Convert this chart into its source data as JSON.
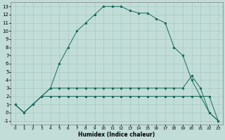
{
  "xlabel": "Humidex (Indice chaleur)",
  "bg_color": "#c2ddd8",
  "grid_color": "#9fc4be",
  "line_color": "#1a6b5a",
  "xlim": [
    -0.5,
    23.5
  ],
  "ylim": [
    -1.5,
    13.5
  ],
  "xticks": [
    0,
    1,
    2,
    3,
    4,
    5,
    6,
    7,
    8,
    9,
    10,
    11,
    12,
    13,
    14,
    15,
    16,
    17,
    18,
    19,
    20,
    21,
    22,
    23
  ],
  "yticks": [
    -1,
    0,
    1,
    2,
    3,
    4,
    5,
    6,
    7,
    8,
    9,
    10,
    11,
    12,
    13
  ],
  "line1_x": [
    0,
    1,
    2,
    3,
    4,
    5,
    6,
    7,
    8,
    9,
    10,
    11,
    12,
    13,
    14,
    15,
    16,
    17,
    18,
    19,
    20,
    21,
    22,
    23
  ],
  "line1_y": [
    1,
    0,
    1,
    2,
    3,
    6,
    8,
    10,
    11,
    12,
    13,
    13,
    13,
    12.5,
    12.2,
    12.2,
    11.5,
    11.0,
    8,
    7,
    4,
    2,
    0,
    -1
  ],
  "line2_x": [
    0,
    1,
    2,
    3,
    4,
    5,
    6,
    7,
    8,
    9,
    10,
    11,
    12,
    13,
    14,
    15,
    16,
    17,
    18,
    19,
    20,
    21,
    22,
    23
  ],
  "line2_y": [
    1,
    0,
    1,
    2,
    3,
    3,
    3,
    3,
    3,
    3,
    3,
    3,
    3,
    3,
    3,
    3,
    3,
    3,
    3,
    3,
    4.5,
    3,
    0,
    -1
  ],
  "line3_x": [
    0,
    1,
    2,
    3,
    4,
    5,
    6,
    7,
    8,
    9,
    10,
    11,
    12,
    13,
    14,
    15,
    16,
    17,
    18,
    19,
    20,
    21,
    22,
    23
  ],
  "line3_y": [
    1,
    0,
    1,
    2,
    2,
    2,
    2,
    2,
    2,
    2,
    2,
    2,
    2,
    2,
    2,
    2,
    2,
    2,
    2,
    2,
    2,
    2,
    2,
    -1
  ],
  "xlabel_fontsize": 5.5,
  "tick_fontsize_x": 4.2,
  "tick_fontsize_y": 5.0,
  "linewidth": 0.7,
  "markersize": 2.0
}
